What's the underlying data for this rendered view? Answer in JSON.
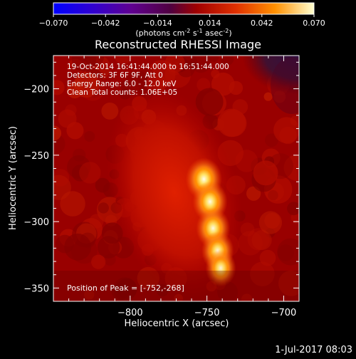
{
  "chart_data": {
    "type": "heatmap",
    "title": "Reconstructed RHESSI Image",
    "colorbar": {
      "ticks": [
        "-0.070",
        "-0.042",
        "-0.014",
        "0.014",
        "0.042",
        "0.070"
      ],
      "tick_values": [
        -0.07,
        -0.042,
        -0.014,
        0.014,
        0.042,
        0.07
      ],
      "unit_prefix": "(photons cm",
      "unit_exp1": "-2",
      "unit_mid": " s",
      "unit_exp2": "-1",
      "unit_mid2": " asec",
      "unit_exp3": "-2",
      "unit_suffix": ")",
      "range": [
        -0.07,
        0.07
      ]
    },
    "xlabel": "Heliocentric X (arcsec)",
    "ylabel": "Heliocentric Y (arcsec)",
    "xlim": [
      -850,
      -690
    ],
    "ylim": [
      -360,
      -175
    ],
    "xticks": [
      -800,
      -750,
      -700
    ],
    "xtick_labels": [
      "−800",
      "−750",
      "−700"
    ],
    "yticks": [
      -200,
      -250,
      -300,
      -350
    ],
    "ytick_labels": [
      "−200",
      "−250",
      "−300",
      "−350"
    ],
    "annotations": [
      "19-Oct-2014 16:41:44.000 to 16:51:44.000",
      "Detectors: 3F 6F 9F, Att 0",
      "Energy Range: 6.0 - 12.0 keV",
      "Clean     Total counts: 1.06E+05"
    ],
    "peak_label": "Position of Peak = [-752,-268]",
    "peak": [
      -752,
      -268
    ],
    "source": {
      "description_values": [
        {
          "x": -752,
          "y": -268,
          "value": 0.07
        },
        {
          "x": -748,
          "y": -285,
          "value": 0.062
        },
        {
          "x": -746,
          "y": -305,
          "value": 0.058
        },
        {
          "x": -743,
          "y": -322,
          "value": 0.05
        },
        {
          "x": -741,
          "y": -335,
          "value": 0.04
        }
      ],
      "background": 0.016
    },
    "grid": false
  },
  "footer": {
    "date": "1-Jul-2017 08:03"
  }
}
